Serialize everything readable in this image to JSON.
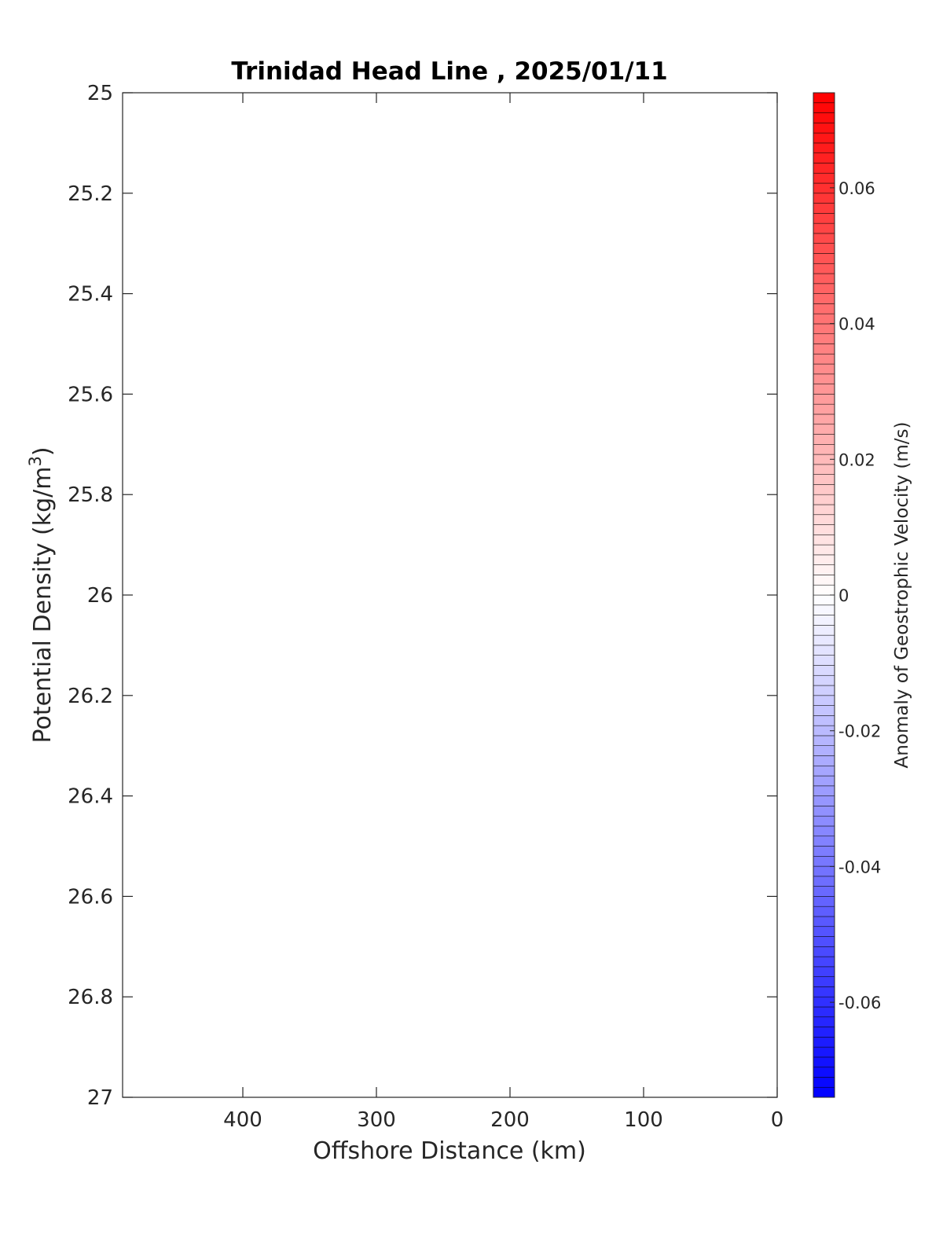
{
  "chart_data": {
    "type": "heatmap",
    "title": "Trinidad Head Line , 2025/01/11",
    "xlabel": "Offshore Distance (km)",
    "ylabel_base": "Potential Density (kg/m",
    "ylabel_sup": "3",
    "ylabel_end": ")",
    "xlim": [
      490,
      0
    ],
    "x_reversed": true,
    "ylim": [
      25,
      27
    ],
    "y_reversed": true,
    "x_ticks": [
      400,
      300,
      200,
      100,
      0
    ],
    "x_tick_labels": [
      "400",
      "300",
      "200",
      "100",
      "0"
    ],
    "y_ticks": [
      25,
      25.2,
      25.4,
      25.6,
      25.8,
      26,
      26.2,
      26.4,
      26.6,
      26.8,
      27
    ],
    "y_tick_labels": [
      "25",
      "25.2",
      "25.4",
      "25.6",
      "25.8",
      "26",
      "26.2",
      "26.4",
      "26.6",
      "26.8",
      "27"
    ],
    "grid": false,
    "values": [],
    "colorbar": {
      "label": "Anomaly of Geostrophic Velocity (m/s)",
      "range": [
        -0.074,
        0.074
      ],
      "levels": 100,
      "ticks": [
        -0.06,
        -0.04,
        -0.02,
        0,
        0.02,
        0.04,
        0.06
      ],
      "tick_labels": [
        "-0.06",
        "-0.04",
        "-0.02",
        "0",
        "0.02",
        "0.04",
        "0.06"
      ],
      "colormap_low": "#0000ff",
      "colormap_mid": "#ffffff",
      "colormap_high": "#ff0000"
    }
  }
}
